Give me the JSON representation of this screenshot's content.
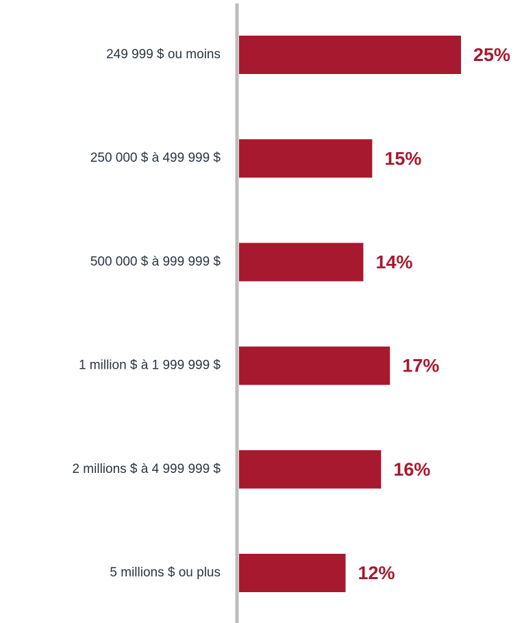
{
  "chart_data": {
    "type": "hbar",
    "categories": [
      "249 999 $ ou moins",
      "250 000 $ à 499 999 $",
      "500 000 $ à 999 999 $",
      "1 million $ à 1 999 999 $",
      "2 millions $ à 4 999 999 $",
      "5 millions $ ou plus"
    ],
    "values": [
      25,
      15,
      14,
      17,
      16,
      12
    ],
    "value_labels": [
      "25%",
      "15%",
      "14%",
      "17%",
      "16%",
      "12%"
    ],
    "color": "#a6192e"
  }
}
